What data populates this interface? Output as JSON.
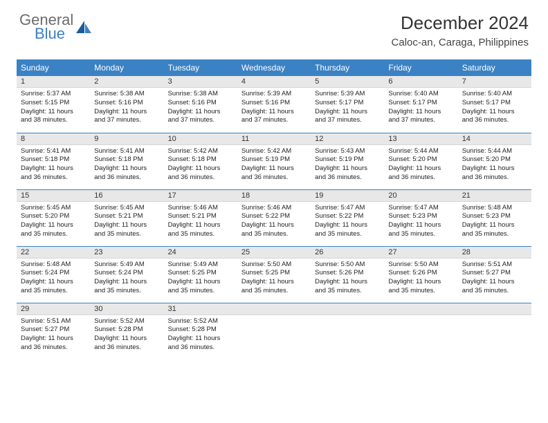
{
  "logo": {
    "word1": "General",
    "word2": "Blue"
  },
  "title": "December 2024",
  "location": "Caloc-an, Caraga, Philippines",
  "colors": {
    "header_bg": "#3b82c4",
    "header_text": "#ffffff",
    "daynum_bg": "#e8e8e8",
    "row_border": "#3b82c4",
    "logo_gray": "#6b6b6b",
    "logo_blue": "#3b7fc4"
  },
  "weekdays": [
    "Sunday",
    "Monday",
    "Tuesday",
    "Wednesday",
    "Thursday",
    "Friday",
    "Saturday"
  ],
  "days": [
    {
      "n": "1",
      "sr": "5:37 AM",
      "ss": "5:15 PM",
      "dl": "11 hours and 38 minutes."
    },
    {
      "n": "2",
      "sr": "5:38 AM",
      "ss": "5:16 PM",
      "dl": "11 hours and 37 minutes."
    },
    {
      "n": "3",
      "sr": "5:38 AM",
      "ss": "5:16 PM",
      "dl": "11 hours and 37 minutes."
    },
    {
      "n": "4",
      "sr": "5:39 AM",
      "ss": "5:16 PM",
      "dl": "11 hours and 37 minutes."
    },
    {
      "n": "5",
      "sr": "5:39 AM",
      "ss": "5:17 PM",
      "dl": "11 hours and 37 minutes."
    },
    {
      "n": "6",
      "sr": "5:40 AM",
      "ss": "5:17 PM",
      "dl": "11 hours and 37 minutes."
    },
    {
      "n": "7",
      "sr": "5:40 AM",
      "ss": "5:17 PM",
      "dl": "11 hours and 36 minutes."
    },
    {
      "n": "8",
      "sr": "5:41 AM",
      "ss": "5:18 PM",
      "dl": "11 hours and 36 minutes."
    },
    {
      "n": "9",
      "sr": "5:41 AM",
      "ss": "5:18 PM",
      "dl": "11 hours and 36 minutes."
    },
    {
      "n": "10",
      "sr": "5:42 AM",
      "ss": "5:18 PM",
      "dl": "11 hours and 36 minutes."
    },
    {
      "n": "11",
      "sr": "5:42 AM",
      "ss": "5:19 PM",
      "dl": "11 hours and 36 minutes."
    },
    {
      "n": "12",
      "sr": "5:43 AM",
      "ss": "5:19 PM",
      "dl": "11 hours and 36 minutes."
    },
    {
      "n": "13",
      "sr": "5:44 AM",
      "ss": "5:20 PM",
      "dl": "11 hours and 36 minutes."
    },
    {
      "n": "14",
      "sr": "5:44 AM",
      "ss": "5:20 PM",
      "dl": "11 hours and 36 minutes."
    },
    {
      "n": "15",
      "sr": "5:45 AM",
      "ss": "5:20 PM",
      "dl": "11 hours and 35 minutes."
    },
    {
      "n": "16",
      "sr": "5:45 AM",
      "ss": "5:21 PM",
      "dl": "11 hours and 35 minutes."
    },
    {
      "n": "17",
      "sr": "5:46 AM",
      "ss": "5:21 PM",
      "dl": "11 hours and 35 minutes."
    },
    {
      "n": "18",
      "sr": "5:46 AM",
      "ss": "5:22 PM",
      "dl": "11 hours and 35 minutes."
    },
    {
      "n": "19",
      "sr": "5:47 AM",
      "ss": "5:22 PM",
      "dl": "11 hours and 35 minutes."
    },
    {
      "n": "20",
      "sr": "5:47 AM",
      "ss": "5:23 PM",
      "dl": "11 hours and 35 minutes."
    },
    {
      "n": "21",
      "sr": "5:48 AM",
      "ss": "5:23 PM",
      "dl": "11 hours and 35 minutes."
    },
    {
      "n": "22",
      "sr": "5:48 AM",
      "ss": "5:24 PM",
      "dl": "11 hours and 35 minutes."
    },
    {
      "n": "23",
      "sr": "5:49 AM",
      "ss": "5:24 PM",
      "dl": "11 hours and 35 minutes."
    },
    {
      "n": "24",
      "sr": "5:49 AM",
      "ss": "5:25 PM",
      "dl": "11 hours and 35 minutes."
    },
    {
      "n": "25",
      "sr": "5:50 AM",
      "ss": "5:25 PM",
      "dl": "11 hours and 35 minutes."
    },
    {
      "n": "26",
      "sr": "5:50 AM",
      "ss": "5:26 PM",
      "dl": "11 hours and 35 minutes."
    },
    {
      "n": "27",
      "sr": "5:50 AM",
      "ss": "5:26 PM",
      "dl": "11 hours and 35 minutes."
    },
    {
      "n": "28",
      "sr": "5:51 AM",
      "ss": "5:27 PM",
      "dl": "11 hours and 35 minutes."
    },
    {
      "n": "29",
      "sr": "5:51 AM",
      "ss": "5:27 PM",
      "dl": "11 hours and 36 minutes."
    },
    {
      "n": "30",
      "sr": "5:52 AM",
      "ss": "5:28 PM",
      "dl": "11 hours and 36 minutes."
    },
    {
      "n": "31",
      "sr": "5:52 AM",
      "ss": "5:28 PM",
      "dl": "11 hours and 36 minutes."
    }
  ],
  "labels": {
    "sunrise": "Sunrise:",
    "sunset": "Sunset:",
    "daylight": "Daylight:"
  }
}
